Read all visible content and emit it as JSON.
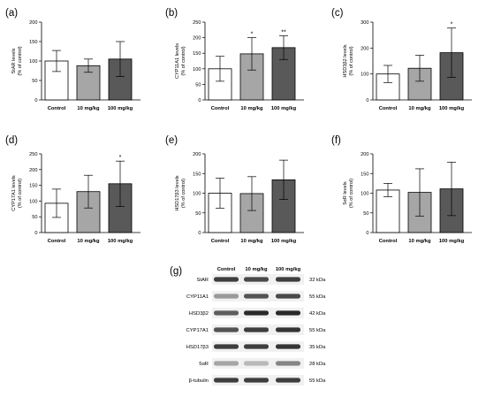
{
  "chart_data": [
    {
      "type": "bar",
      "panel": "(a)",
      "ylabel_lines": [
        "StAR levels",
        "(% of control)"
      ],
      "categories": [
        "Control",
        "10 mg/kg",
        "100 mg/kg"
      ],
      "values": [
        100,
        88,
        105
      ],
      "errors": [
        27,
        17,
        45
      ],
      "significance": [
        "",
        "",
        ""
      ],
      "ylim": [
        0,
        200
      ],
      "yticks": [
        0,
        50,
        100,
        150,
        200
      ],
      "bar_colors": [
        "#ffffff",
        "#a6a6a6",
        "#595959"
      ]
    },
    {
      "type": "bar",
      "panel": "(b)",
      "ylabel_lines": [
        "CYP11A1 levels",
        "(% of control)"
      ],
      "categories": [
        "Control",
        "10 mg/kg",
        "100 mg/kg"
      ],
      "values": [
        100,
        148,
        168
      ],
      "errors": [
        40,
        52,
        38
      ],
      "significance": [
        "",
        "*",
        "**"
      ],
      "ylim": [
        0,
        250
      ],
      "yticks": [
        0,
        50,
        100,
        150,
        200,
        250
      ],
      "bar_colors": [
        "#ffffff",
        "#a6a6a6",
        "#595959"
      ]
    },
    {
      "type": "bar",
      "panel": "(c)",
      "ylabel_lines": [
        "HSD3β2 levels",
        "(% of control)"
      ],
      "categories": [
        "Control",
        "10 mg/kg",
        "100 mg/kg"
      ],
      "values": [
        100,
        122,
        182
      ],
      "errors": [
        33,
        50,
        95
      ],
      "significance": [
        "",
        "",
        "*"
      ],
      "ylim": [
        0,
        300
      ],
      "yticks": [
        0,
        100,
        200,
        300
      ],
      "bar_colors": [
        "#ffffff",
        "#a6a6a6",
        "#595959"
      ]
    },
    {
      "type": "bar",
      "panel": "(d)",
      "ylabel_lines": [
        "CYP17A1 levels",
        "(% of control)"
      ],
      "categories": [
        "Control",
        "10 mg/kg",
        "100 mg/kg"
      ],
      "values": [
        93,
        130,
        155
      ],
      "errors": [
        45,
        52,
        72
      ],
      "significance": [
        "",
        "",
        "*"
      ],
      "ylim": [
        0,
        250
      ],
      "yticks": [
        0,
        50,
        100,
        150,
        200,
        250
      ],
      "bar_colors": [
        "#ffffff",
        "#a6a6a6",
        "#595959"
      ]
    },
    {
      "type": "bar",
      "panel": "(e)",
      "ylabel_lines": [
        "HSD17β3 levels",
        "(% of control)"
      ],
      "categories": [
        "Control",
        "10 mg/kg",
        "100 mg/kg"
      ],
      "values": [
        100,
        99,
        134
      ],
      "errors": [
        38,
        43,
        50
      ],
      "significance": [
        "",
        "",
        ""
      ],
      "ylim": [
        0,
        200
      ],
      "yticks": [
        0,
        50,
        100,
        150,
        200
      ],
      "bar_colors": [
        "#ffffff",
        "#a6a6a6",
        "#595959"
      ]
    },
    {
      "type": "bar",
      "panel": "(f)",
      "ylabel_lines": [
        "5αR levels",
        "(% of control)"
      ],
      "categories": [
        "Control",
        "10 mg/kg",
        "100 mg/kg"
      ],
      "values": [
        108,
        102,
        111
      ],
      "errors": [
        17,
        60,
        68
      ],
      "significance": [
        "",
        "",
        ""
      ],
      "ylim": [
        0,
        200
      ],
      "yticks": [
        0,
        50,
        100,
        150,
        200
      ],
      "bar_colors": [
        "#ffffff",
        "#a6a6a6",
        "#595959"
      ]
    }
  ],
  "blot": {
    "panel": "(g)",
    "lanes": [
      "Control",
      "10 mg/kg",
      "100 mg/kg"
    ],
    "rows": [
      {
        "protein": "StAR",
        "kda": "32 kDa",
        "intensity": [
          0.85,
          0.8,
          0.85
        ]
      },
      {
        "protein": "CYP11A1",
        "kda": "55 kDa",
        "intensity": [
          0.4,
          0.75,
          0.8
        ]
      },
      {
        "protein": "HSD3β2",
        "kda": "42 kDa",
        "intensity": [
          0.7,
          0.95,
          0.95
        ]
      },
      {
        "protein": "CYP17A1",
        "kda": "55 kDa",
        "intensity": [
          0.75,
          0.85,
          0.9
        ]
      },
      {
        "protein": "HSD17β3",
        "kda": "35 kDa",
        "intensity": [
          0.85,
          0.85,
          0.9
        ]
      },
      {
        "protein": "5αR",
        "kda": "28 kDa",
        "intensity": [
          0.35,
          0.25,
          0.5
        ]
      },
      {
        "protein": "β-tubulin",
        "kda": "55 kDa",
        "intensity": [
          0.85,
          0.85,
          0.85
        ]
      }
    ]
  }
}
